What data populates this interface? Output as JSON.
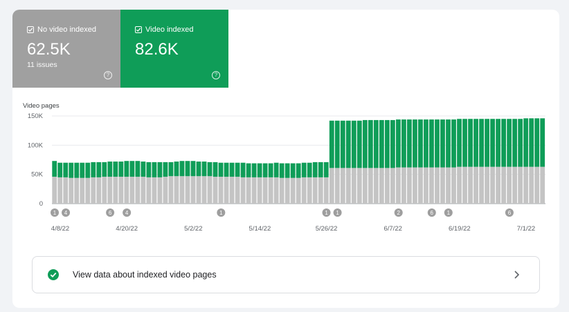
{
  "tiles": [
    {
      "label": "No video indexed",
      "value": "62.5K",
      "sub": "11 issues",
      "color": "#a0a0a0"
    },
    {
      "label": "Video indexed",
      "value": "82.6K",
      "sub": "",
      "color": "#0f9d58"
    }
  ],
  "chart_data": {
    "type": "bar",
    "stacked": true,
    "ylabel": "Video pages",
    "ylim": [
      0,
      150000
    ],
    "yticks": [
      0,
      50000,
      100000,
      150000
    ],
    "ytick_labels": [
      "0",
      "50K",
      "100K",
      "150K"
    ],
    "x_tick_labels": [
      "4/8/22",
      "4/20/22",
      "5/2/22",
      "5/14/22",
      "5/26/22",
      "6/7/22",
      "6/19/22",
      "7/1/22"
    ],
    "x_tick_index": [
      0,
      12,
      24,
      36,
      48,
      60,
      72,
      84
    ],
    "categories": [
      "4/8/22",
      "4/9/22",
      "4/10/22",
      "4/11/22",
      "4/12/22",
      "4/13/22",
      "4/14/22",
      "4/15/22",
      "4/16/22",
      "4/17/22",
      "4/18/22",
      "4/19/22",
      "4/20/22",
      "4/21/22",
      "4/22/22",
      "4/23/22",
      "4/24/22",
      "4/25/22",
      "4/26/22",
      "4/27/22",
      "4/28/22",
      "4/29/22",
      "4/30/22",
      "5/1/22",
      "5/2/22",
      "5/3/22",
      "5/4/22",
      "5/5/22",
      "5/6/22",
      "5/7/22",
      "5/8/22",
      "5/9/22",
      "5/10/22",
      "5/11/22",
      "5/12/22",
      "5/13/22",
      "5/14/22",
      "5/15/22",
      "5/16/22",
      "5/17/22",
      "5/18/22",
      "5/19/22",
      "5/20/22",
      "5/21/22",
      "5/22/22",
      "5/23/22",
      "5/24/22",
      "5/25/22",
      "5/26/22",
      "5/27/22",
      "5/28/22",
      "5/29/22",
      "5/30/22",
      "5/31/22",
      "6/1/22",
      "6/2/22",
      "6/3/22",
      "6/4/22",
      "6/5/22",
      "6/6/22",
      "6/7/22",
      "6/8/22",
      "6/9/22",
      "6/10/22",
      "6/11/22",
      "6/12/22",
      "6/13/22",
      "6/14/22",
      "6/15/22",
      "6/16/22",
      "6/17/22",
      "6/18/22",
      "6/19/22",
      "6/20/22",
      "6/21/22",
      "6/22/22",
      "6/23/22",
      "6/24/22",
      "6/25/22",
      "6/26/22",
      "6/27/22",
      "6/28/22",
      "6/29/22",
      "6/30/22",
      "7/1/22",
      "7/2/22",
      "7/3/22",
      "7/4/22",
      "7/5/22"
    ],
    "series": [
      {
        "name": "No video indexed",
        "color": "#c4c4c4",
        "values": [
          46000,
          45000,
          45000,
          44000,
          44000,
          44000,
          44000,
          45000,
          45000,
          46000,
          46000,
          46000,
          46000,
          46000,
          46000,
          46000,
          46000,
          45000,
          45000,
          45000,
          46000,
          47000,
          47000,
          47000,
          47000,
          47000,
          47000,
          47000,
          47000,
          46000,
          46000,
          46000,
          46000,
          46000,
          45000,
          45000,
          45000,
          45000,
          45000,
          45000,
          45000,
          44000,
          44000,
          44000,
          44000,
          45000,
          45000,
          45000,
          45000,
          45000,
          61000,
          61000,
          61000,
          61000,
          61000,
          61000,
          61000,
          61000,
          61000,
          61000,
          61000,
          61000,
          62000,
          62000,
          62000,
          62000,
          62000,
          62000,
          62000,
          62000,
          62000,
          62000,
          62000,
          63000,
          63000,
          63000,
          63000,
          63000,
          63000,
          63000,
          63000,
          63000,
          63000,
          63000,
          63000,
          63000,
          63000,
          63000,
          63000
        ]
      },
      {
        "name": "Video indexed",
        "color": "#0f9d58",
        "values": [
          27000,
          25000,
          25000,
          26000,
          26000,
          26000,
          26000,
          26000,
          26000,
          25000,
          26000,
          26000,
          26000,
          27000,
          27000,
          27000,
          26000,
          26000,
          26000,
          26000,
          25000,
          24000,
          25000,
          26000,
          26000,
          26000,
          25000,
          25000,
          24000,
          25000,
          24000,
          24000,
          24000,
          24000,
          25000,
          24000,
          24000,
          24000,
          24000,
          24000,
          25000,
          25000,
          25000,
          25000,
          25000,
          25000,
          25000,
          26000,
          26000,
          26000,
          81000,
          81000,
          81000,
          81000,
          81000,
          81000,
          82000,
          82000,
          82000,
          82000,
          82000,
          82000,
          82000,
          82000,
          82000,
          82000,
          82000,
          82000,
          82000,
          82000,
          82000,
          82000,
          82000,
          82000,
          82000,
          82000,
          82000,
          82000,
          82000,
          82000,
          82000,
          82000,
          82000,
          82000,
          82000,
          83000,
          83000,
          83000,
          83000
        ]
      }
    ],
    "annotations": [
      {
        "index": 0,
        "label": "1"
      },
      {
        "index": 2,
        "label": "4"
      },
      {
        "index": 10,
        "label": "6"
      },
      {
        "index": 13,
        "label": "4"
      },
      {
        "index": 30,
        "label": "1"
      },
      {
        "index": 49,
        "label": "1"
      },
      {
        "index": 51,
        "label": "1"
      },
      {
        "index": 62,
        "label": "2"
      },
      {
        "index": 68,
        "label": "6"
      },
      {
        "index": 71,
        "label": "1"
      },
      {
        "index": 82,
        "label": "6"
      }
    ],
    "grid": true
  },
  "cta": {
    "label": "View data about indexed video pages"
  }
}
